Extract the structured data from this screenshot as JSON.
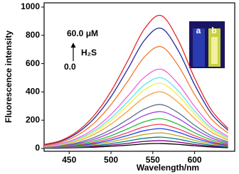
{
  "chart_data": {
    "type": "line",
    "xlabel": "Wavelength/nm",
    "ylabel": "Fluorescence intensity",
    "annotations": {
      "top": "60.0 μM",
      "analyte": "H₂S",
      "bottom": "0.0"
    },
    "inset_labels": [
      "a",
      "b"
    ],
    "x": [
      420,
      440,
      460,
      480,
      500,
      520,
      540,
      560,
      580,
      600,
      620,
      640
    ],
    "xlim": [
      420,
      648
    ],
    "xticks": [
      450,
      500,
      550,
      600
    ],
    "ylim": [
      -20,
      1030
    ],
    "yticks": [
      0,
      200,
      400,
      600,
      800,
      1000
    ],
    "series": [
      {
        "color": "#e8262a",
        "values": [
          28,
          56,
          122,
          235,
          404,
          620,
          846,
          940,
          771,
          498,
          273,
          141
        ]
      },
      {
        "color": "#1c2a9c",
        "values": [
          26,
          51,
          111,
          213,
          366,
          561,
          765,
          850,
          697,
          451,
          247,
          128
        ]
      },
      {
        "color": "#f07a2a",
        "values": [
          22,
          43,
          94,
          180,
          310,
          475,
          648,
          720,
          590,
          382,
          209,
          108
        ]
      },
      {
        "color": "#f060d8",
        "values": [
          17,
          34,
          73,
          140,
          241,
          370,
          504,
          560,
          459,
          297,
          162,
          84
        ]
      },
      {
        "color": "#5ee8f0",
        "values": [
          15,
          30,
          65,
          125,
          215,
          330,
          450,
          500,
          410,
          265,
          145,
          75
        ]
      },
      {
        "color": "#f0f040",
        "values": [
          14,
          28,
          60,
          115,
          198,
          304,
          414,
          460,
          377,
          244,
          133,
          69
        ]
      },
      {
        "color": "#f5a040",
        "values": [
          12,
          24,
          52,
          100,
          172,
          264,
          360,
          400,
          328,
          212,
          116,
          60
        ]
      },
      {
        "color": "#607090",
        "values": [
          9,
          19,
          40,
          78,
          133,
          205,
          279,
          310,
          254,
          164,
          90,
          47
        ]
      },
      {
        "color": "#a040e0",
        "values": [
          8,
          16,
          34,
          65,
          112,
          172,
          234,
          260,
          213,
          138,
          75,
          39
        ]
      },
      {
        "color": "#20c030",
        "values": [
          6,
          13,
          27,
          53,
          90,
          139,
          189,
          210,
          172,
          111,
          61,
          32
        ]
      },
      {
        "color": "#f04060",
        "values": [
          5,
          10,
          22,
          43,
          73,
          112,
          153,
          170,
          139,
          90,
          49,
          26
        ]
      },
      {
        "color": "#2040f0",
        "values": [
          4,
          8,
          18,
          35,
          60,
          92,
          126,
          140,
          115,
          74,
          41,
          21
        ]
      },
      {
        "color": "#c0a020",
        "values": [
          3,
          7,
          14,
          28,
          47,
          73,
          99,
          110,
          90,
          58,
          32,
          17
        ]
      },
      {
        "color": "#008080",
        "values": [
          2,
          5,
          10,
          20,
          34,
          53,
          72,
          80,
          66,
          42,
          23,
          12
        ]
      },
      {
        "color": "#800080",
        "values": [
          2,
          3,
          7,
          14,
          24,
          36,
          50,
          55,
          45,
          29,
          16,
          8
        ]
      },
      {
        "color": "#000000",
        "values": [
          1,
          2,
          5,
          9,
          15,
          23,
          32,
          35,
          29,
          19,
          10,
          5
        ]
      }
    ]
  }
}
